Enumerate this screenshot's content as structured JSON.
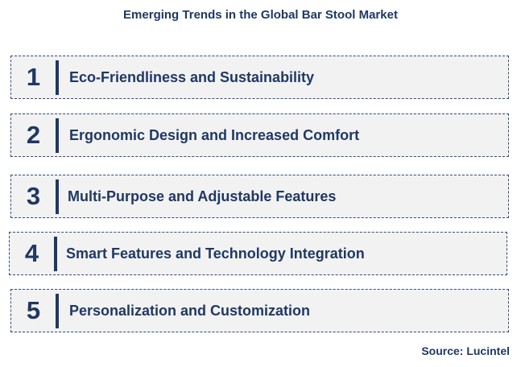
{
  "title": "Emerging Trends in the Global Bar Stool Market",
  "items": [
    {
      "number": "1",
      "label": "Eco-Friendliness and Sustainability"
    },
    {
      "number": "2",
      "label": "Ergonomic Design and Increased Comfort"
    },
    {
      "number": "3",
      "label": "Multi-Purpose and Adjustable Features"
    },
    {
      "number": "4",
      "label": "Smart Features and Technology Integration"
    },
    {
      "number": "5",
      "label": "Personalization and Customization"
    }
  ],
  "source": "Source: Lucintel",
  "colors": {
    "text": "#1f3864",
    "box_fill": "#f2f2f2",
    "border": "#2e4a7d"
  }
}
